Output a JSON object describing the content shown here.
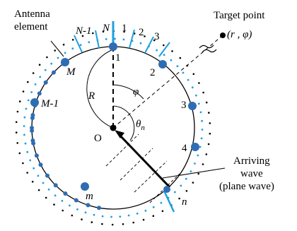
{
  "labels": {
    "antenna_line1": "Antenna",
    "antenna_line2": "element",
    "target_line1": "Target point",
    "target_line2": "(r , φ)",
    "arriving_line1": "Arriving",
    "arriving_line2": "wave",
    "arriving_line3": "(plane wave)",
    "origin": "O",
    "radius": "R",
    "phi": "φ",
    "theta": "θ",
    "theta_sub": "n",
    "elem_N_minus_1": "N-1",
    "elem_N": "N",
    "elem_1_top": "1",
    "elem_2_top": "2",
    "elem_3_top": "3",
    "elem_M": "M",
    "elem_M_minus_1": "M-1",
    "elem_1": "1",
    "elem_2": "2",
    "elem_3": "3",
    "elem_4": "4",
    "elem_m": "m",
    "elem_n": "n"
  },
  "colors": {
    "ink": "#000000",
    "element_blue": "#2e6db4",
    "stroke_blue": "#1ea0dc",
    "dot_blue": "#1ea0dc"
  }
}
